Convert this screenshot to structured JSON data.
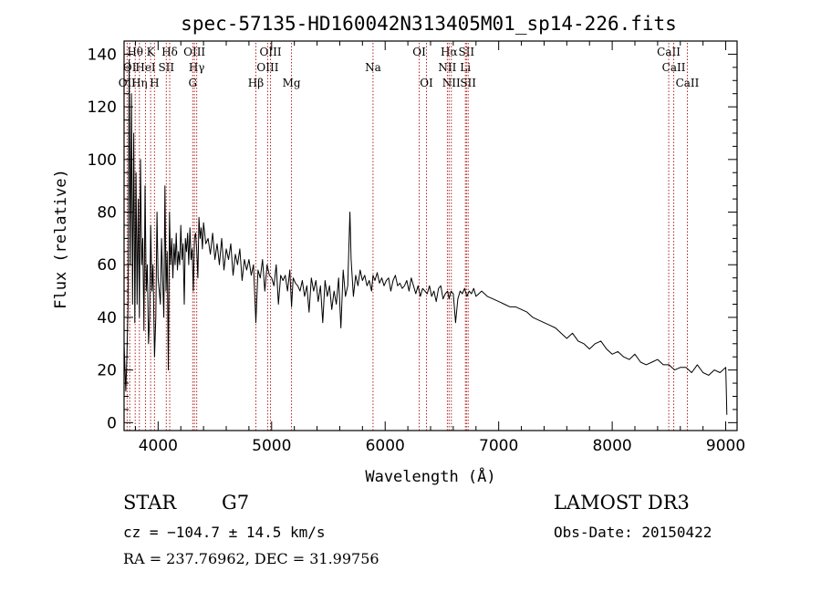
{
  "chart_data": {
    "type": "line",
    "title": "spec-57135-HD160042N313405M01_sp14-226.fits",
    "xlabel": "Wavelength (Å)",
    "ylabel": "Flux (relative)",
    "xlim": [
      3700,
      9100
    ],
    "ylim": [
      -3,
      145
    ],
    "xticks": [
      4000,
      5000,
      6000,
      7000,
      8000,
      9000
    ],
    "yticks": [
      0,
      20,
      40,
      60,
      80,
      100,
      120,
      140
    ],
    "series": [
      {
        "name": "spectrum",
        "x": [
          3700,
          3715,
          3725,
          3735,
          3745,
          3755,
          3765,
          3775,
          3785,
          3795,
          3805,
          3815,
          3825,
          3835,
          3845,
          3855,
          3865,
          3875,
          3885,
          3895,
          3905,
          3915,
          3925,
          3935,
          3945,
          3955,
          3968,
          3980,
          3990,
          4000,
          4010,
          4020,
          4030,
          4040,
          4050,
          4060,
          4070,
          4080,
          4090,
          4100,
          4110,
          4120,
          4130,
          4140,
          4150,
          4160,
          4170,
          4180,
          4190,
          4200,
          4210,
          4220,
          4230,
          4240,
          4250,
          4260,
          4270,
          4280,
          4290,
          4300,
          4310,
          4320,
          4330,
          4340,
          4350,
          4360,
          4370,
          4380,
          4390,
          4400,
          4420,
          4440,
          4460,
          4480,
          4500,
          4520,
          4540,
          4560,
          4580,
          4600,
          4620,
          4640,
          4660,
          4680,
          4700,
          4720,
          4740,
          4760,
          4780,
          4800,
          4820,
          4840,
          4861,
          4880,
          4900,
          4920,
          4940,
          4960,
          4980,
          5000,
          5020,
          5040,
          5060,
          5080,
          5100,
          5120,
          5140,
          5160,
          5175,
          5190,
          5210,
          5230,
          5250,
          5270,
          5290,
          5310,
          5330,
          5350,
          5370,
          5390,
          5410,
          5430,
          5450,
          5470,
          5490,
          5510,
          5530,
          5550,
          5570,
          5590,
          5610,
          5630,
          5650,
          5670,
          5690,
          5700,
          5720,
          5740,
          5760,
          5780,
          5800,
          5820,
          5840,
          5860,
          5880,
          5893,
          5910,
          5930,
          5950,
          5970,
          5990,
          6010,
          6030,
          6050,
          6070,
          6090,
          6110,
          6130,
          6150,
          6170,
          6190,
          6210,
          6230,
          6250,
          6270,
          6290,
          6310,
          6330,
          6350,
          6370,
          6390,
          6410,
          6430,
          6450,
          6470,
          6490,
          6510,
          6530,
          6550,
          6563,
          6580,
          6600,
          6620,
          6640,
          6660,
          6680,
          6700,
          6720,
          6740,
          6760,
          6780,
          6800,
          6850,
          6900,
          6950,
          7000,
          7050,
          7100,
          7150,
          7200,
          7250,
          7300,
          7350,
          7400,
          7450,
          7500,
          7550,
          7600,
          7650,
          7700,
          7750,
          7800,
          7850,
          7900,
          7950,
          8000,
          8050,
          8100,
          8150,
          8200,
          8250,
          8300,
          8350,
          8400,
          8450,
          8500,
          8550,
          8600,
          8650,
          8700,
          8750,
          8800,
          8850,
          8900,
          8950,
          9000,
          9010
        ],
        "y": [
          30,
          12,
          25,
          45,
          138,
          60,
          125,
          45,
          110,
          38,
          95,
          45,
          85,
          40,
          100,
          60,
          70,
          35,
          90,
          50,
          60,
          30,
          40,
          75,
          50,
          60,
          25,
          40,
          80,
          55,
          50,
          45,
          70,
          55,
          40,
          90,
          50,
          65,
          20,
          80,
          60,
          70,
          55,
          68,
          60,
          72,
          58,
          65,
          60,
          75,
          62,
          68,
          45,
          70,
          65,
          72,
          60,
          74,
          62,
          66,
          50,
          70,
          72,
          66,
          55,
          78,
          70,
          74,
          66,
          76,
          68,
          70,
          64,
          72,
          62,
          68,
          60,
          70,
          58,
          66,
          62,
          68,
          56,
          64,
          60,
          66,
          54,
          62,
          58,
          62,
          56,
          60,
          38,
          58,
          55,
          62,
          50,
          60,
          56,
          55,
          52,
          60,
          45,
          56,
          54,
          56,
          50,
          58,
          44,
          55,
          53,
          52,
          50,
          54,
          48,
          52,
          42,
          55,
          50,
          54,
          46,
          52,
          38,
          54,
          48,
          52,
          43,
          50,
          45,
          55,
          36,
          58,
          48,
          52,
          80,
          62,
          48,
          56,
          52,
          58,
          54,
          56,
          52,
          54,
          50,
          56,
          54,
          57,
          53,
          55,
          52,
          54,
          55,
          50,
          54,
          56,
          52,
          53,
          51,
          52,
          54,
          50,
          55,
          52,
          49,
          52,
          48,
          51,
          50,
          49,
          52,
          48,
          50,
          46,
          51,
          52,
          47,
          49,
          50,
          47,
          50,
          49,
          38,
          47,
          50,
          49,
          51,
          48,
          50,
          49,
          51,
          48,
          50,
          48,
          47,
          46,
          45,
          44,
          44,
          43,
          42,
          40,
          39,
          38,
          37,
          36,
          34,
          32,
          34,
          31,
          30,
          28,
          30,
          31,
          28,
          26,
          27,
          25,
          24,
          26,
          23,
          22,
          23,
          24,
          22,
          22,
          20,
          21,
          21,
          19,
          22,
          19,
          18,
          20,
          19,
          21,
          3
        ]
      }
    ],
    "annotations": [
      {
        "label": "OII",
        "wavelength": 3727,
        "row": 3
      },
      {
        "label": "Hθ",
        "wavelength": 3798,
        "row": 1
      },
      {
        "label": "OI",
        "wavelength": 3750,
        "row": 2
      },
      {
        "label": "Hη",
        "wavelength": 3835,
        "row": 3
      },
      {
        "label": "HeI",
        "wavelength": 3889,
        "row": 2
      },
      {
        "label": "K",
        "wavelength": 3934,
        "row": 1
      },
      {
        "label": "H",
        "wavelength": 3968,
        "row": 3
      },
      {
        "label": "SII",
        "wavelength": 4072,
        "row": 2
      },
      {
        "label": "Hδ",
        "wavelength": 4102,
        "row": 1
      },
      {
        "label": "OIII",
        "wavelength": 4320,
        "row": 1
      },
      {
        "label": "Hγ",
        "wavelength": 4340,
        "row": 2
      },
      {
        "label": "G",
        "wavelength": 4305,
        "row": 3
      },
      {
        "label": "Hβ",
        "wavelength": 4861,
        "row": 3
      },
      {
        "label": "OIII",
        "wavelength": 4990,
        "row": 1
      },
      {
        "label": "OIII",
        "wavelength": 4965,
        "row": 2
      },
      {
        "label": "Mg",
        "wavelength": 5175,
        "row": 3
      },
      {
        "label": "Na",
        "wavelength": 5893,
        "row": 2
      },
      {
        "label": "OI",
        "wavelength": 6300,
        "row": 1
      },
      {
        "label": "OI",
        "wavelength": 6364,
        "row": 3
      },
      {
        "label": "Hα",
        "wavelength": 6563,
        "row": 1
      },
      {
        "label": "NII",
        "wavelength": 6548,
        "row": 2
      },
      {
        "label": "NII",
        "wavelength": 6583,
        "row": 3
      },
      {
        "label": "SII",
        "wavelength": 6716,
        "row": 1
      },
      {
        "label": "Li",
        "wavelength": 6707,
        "row": 2
      },
      {
        "label": "SII",
        "wavelength": 6731,
        "row": 3
      },
      {
        "label": "CaII",
        "wavelength": 8498,
        "row": 1
      },
      {
        "label": "CaII",
        "wavelength": 8542,
        "row": 2
      },
      {
        "label": "CaII",
        "wavelength": 8662,
        "row": 3
      }
    ],
    "colors": {
      "spectrum": "#000000",
      "lines": "#b22222",
      "axes": "#000000"
    }
  },
  "info": {
    "object_type": "STAR",
    "subclass": "G7",
    "survey": "LAMOST DR3",
    "redshift": "cz = −104.7 ± 14.5 km/s",
    "obs_date": "Obs-Date: 20150422",
    "coords": "RA = 237.76962, DEC =  31.99756"
  }
}
